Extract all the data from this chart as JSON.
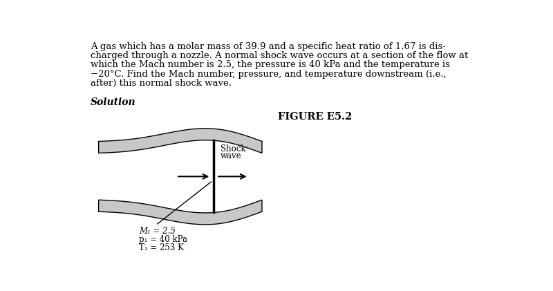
{
  "background_color": "#ffffff",
  "paragraph_lines": [
    "A gas which has a molar mass of 39.9 and a specific heat ratio of 1.67 is dis-",
    "charged through a nozzle. A normal shock wave occurs at a section of the flow at",
    "which the Mach number is 2.5, the pressure is 40 kPa and the temperature is",
    "−20°C. Find the Mach number, pressure, and temperature downstream (i.e.,",
    "after) this normal shock wave."
  ],
  "solution_label": "Solution",
  "figure_label": "FIGURE E5.2",
  "shock_label_line1": "Shock",
  "shock_label_line2": "wave",
  "annotations": [
    "M₁ = 2.5",
    "p₁ = 40 kPa",
    "T₁ = 253 K"
  ],
  "text_color": "#000000",
  "nozzle_fill_color": "#c8c8c8",
  "shock_line_color": "#000000",
  "arrow_color": "#000000",
  "para_fontsize": 9.5,
  "solution_fontsize": 10,
  "figure_fontsize": 10.5,
  "annotation_fontsize": 8.5,
  "shock_label_fontsize": 8.5
}
